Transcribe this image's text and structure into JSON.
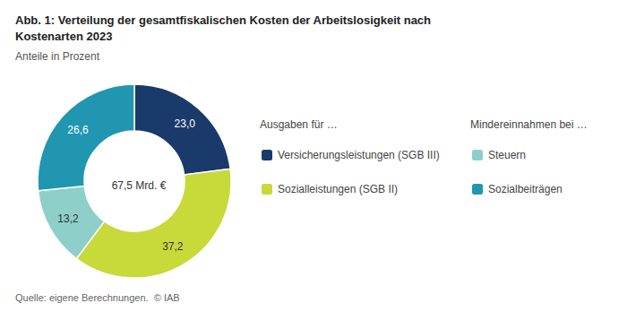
{
  "chart_data": {
    "type": "pie",
    "title": "Abb. 1: Verteilung der gesamtfiskalischen Kosten der Arbeitslosigkeit nach\nKostenarten 2023",
    "subtitle": "Anteile in Prozent",
    "center_label": "67,5 Mrd. €",
    "categories": [
      "Versicherungsleistungen (SGB III)",
      "Sozialleistungen (SGB II)",
      "Steuern",
      "Sozialbeiträgen"
    ],
    "values": [
      23.0,
      37.2,
      13.2,
      26.6
    ],
    "value_labels": [
      "23,0",
      "37,2",
      "13,2",
      "26,6"
    ],
    "colors": [
      "#1a3a6b",
      "#c8d93a",
      "#8ecfc9",
      "#2196b0"
    ],
    "legend_groups": [
      {
        "title": "Ausgaben für …",
        "categories": [
          "Versicherungsleistungen (SGB III)",
          "Sozialleistungen (SGB II)"
        ]
      },
      {
        "title": "Mindereinnahmen bei …",
        "categories": [
          "Steuern",
          "Sozialbeiträgen"
        ]
      }
    ],
    "source": "Quelle: eigene Berechnungen.  © IAB",
    "data_labels": true,
    "legend": "right"
  }
}
